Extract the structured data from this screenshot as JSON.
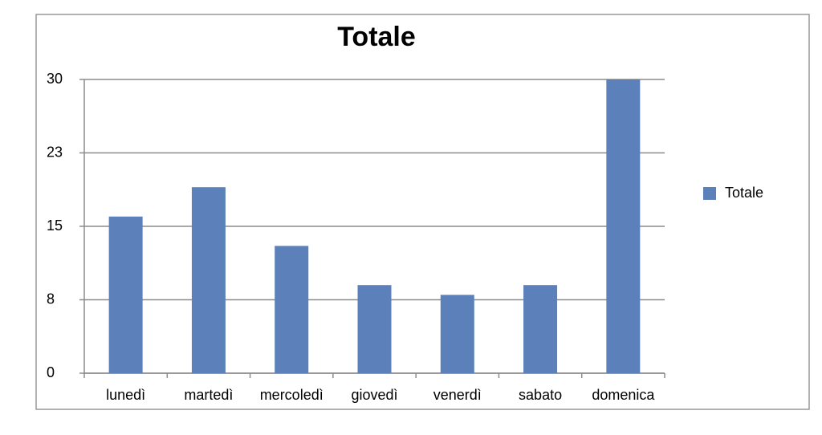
{
  "chart_data": {
    "type": "bar",
    "title": "Totale",
    "categories": [
      "lunedì",
      "martedì",
      "mercoledì",
      "giovedì",
      "venerdì",
      "sabato",
      "domenica"
    ],
    "series": [
      {
        "name": "Totale",
        "color": "#5b80ba",
        "values": [
          16,
          19,
          13,
          9,
          8,
          9,
          30
        ]
      }
    ],
    "ylim": [
      0,
      30
    ],
    "yticks": [
      0,
      {
        "value": 7.5,
        "label": "8"
      },
      15,
      {
        "value": 22.5,
        "label": "23"
      },
      30
    ],
    "grid": true,
    "legend": "right"
  }
}
